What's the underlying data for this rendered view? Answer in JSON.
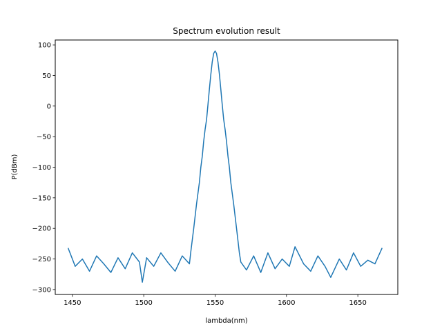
{
  "chart_data": {
    "type": "line",
    "title": "Spectrum evolution result",
    "xlabel": "lambda(nm)",
    "ylabel": "P(dBm)",
    "xlim": [
      1438,
      1678
    ],
    "ylim": [
      -308,
      108
    ],
    "x_ticks": [
      1450,
      1500,
      1550,
      1600,
      1650
    ],
    "y_ticks": [
      100,
      50,
      0,
      -50,
      -100,
      -150,
      -200,
      -250,
      -300
    ],
    "grid": false,
    "legend": "none",
    "series": [
      {
        "color": "#1f77b4",
        "x": [
          1447,
          1452,
          1457,
          1462,
          1467,
          1472,
          1477,
          1482,
          1487,
          1492,
          1497,
          1499,
          1502,
          1507,
          1512,
          1517,
          1522,
          1527,
          1532,
          1533,
          1535,
          1537,
          1539,
          1540,
          1541,
          1542,
          1543,
          1544,
          1545,
          1546,
          1547,
          1548,
          1549,
          1550,
          1551,
          1552,
          1553,
          1554,
          1555,
          1556,
          1557,
          1558,
          1559,
          1560,
          1561,
          1563,
          1565,
          1567,
          1568,
          1572,
          1577,
          1582,
          1587,
          1592,
          1597,
          1602,
          1606,
          1612,
          1617,
          1622,
          1627,
          1631,
          1637,
          1642,
          1647,
          1652,
          1657,
          1662,
          1667
        ],
        "y": [
          -232,
          -262,
          -250,
          -270,
          -245,
          -258,
          -272,
          -248,
          -266,
          -240,
          -255,
          -288,
          -248,
          -262,
          -240,
          -256,
          -270,
          -245,
          -258,
          -238,
          -200,
          -160,
          -125,
          -100,
          -82,
          -58,
          -38,
          -22,
          2,
          28,
          52,
          72,
          86,
          90,
          86,
          72,
          52,
          28,
          2,
          -22,
          -38,
          -58,
          -82,
          -100,
          -125,
          -160,
          -200,
          -240,
          -255,
          -268,
          -245,
          -272,
          -240,
          -266,
          -250,
          -262,
          -230,
          -258,
          -270,
          -245,
          -262,
          -280,
          -250,
          -268,
          -240,
          -262,
          -252,
          -258,
          -232
        ]
      }
    ]
  }
}
